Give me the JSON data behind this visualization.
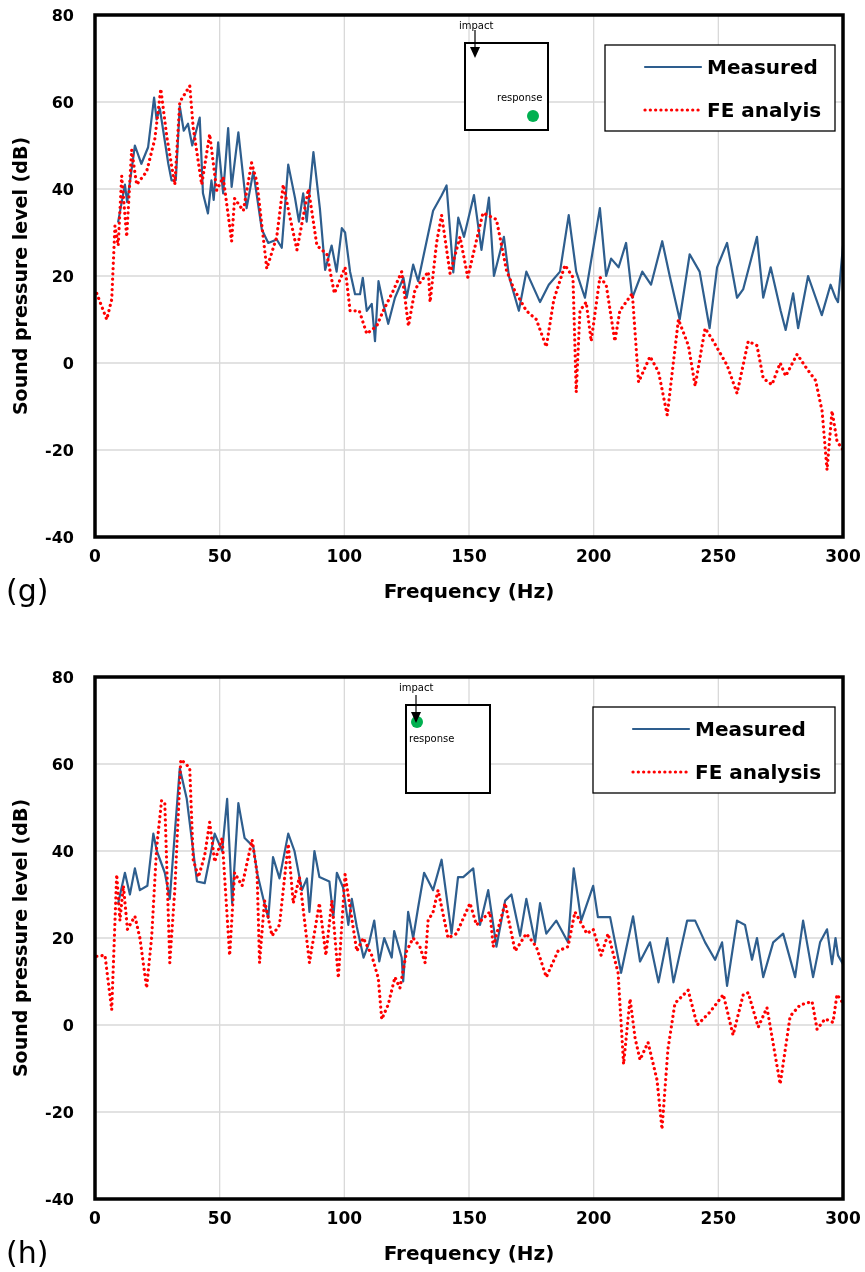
{
  "chart_data": [
    {
      "type": "line",
      "xlabel": "Frequency (Hz)",
      "ylabel": "Sound pressure level (dB)",
      "xlim": [
        0,
        300
      ],
      "ylim": [
        -40,
        80
      ],
      "xticks": [
        0,
        50,
        100,
        150,
        200,
        250,
        300
      ],
      "yticks": [
        -40,
        -20,
        0,
        20,
        40,
        60,
        80
      ],
      "grid": true,
      "legend": "top right",
      "annotations": [
        "(g)",
        "impact",
        "response"
      ],
      "series": [
        {
          "name": "Measured",
          "color": "#2e5e8e",
          "line_style": "solid",
          "x": [
            9.3,
            12,
            12.9,
            16,
            18.6,
            21.3,
            23.7,
            24.7,
            26,
            29.4,
            30.7,
            32.4,
            34,
            35.6,
            37.3,
            39,
            42,
            43.3,
            45.3,
            46.7,
            47.6,
            49.4,
            51.4,
            53.4,
            54.8,
            57.5,
            60.8,
            63.5,
            66.9,
            69.5,
            72.9,
            74.9,
            77.5,
            80.2,
            81.8,
            83.5,
            84.9,
            87.6,
            90.2,
            92.3,
            94.9,
            96.9,
            99,
            100.3,
            102.3,
            104.3,
            106.3,
            107.4,
            109,
            111,
            112.3,
            113.7,
            115.6,
            117.6,
            120.3,
            123.7,
            125,
            127.6,
            129.6,
            133,
            135.6,
            139,
            141,
            143.7,
            145.7,
            148,
            152,
            155,
            158,
            160,
            164,
            166,
            170,
            173,
            178.5,
            182,
            186.5,
            190,
            193,
            196.5,
            202.5,
            205,
            207,
            210,
            213,
            215.5,
            219.5,
            223,
            227.5,
            230.5,
            234.5,
            238.5,
            242.5,
            246.5,
            249.5,
            253.5,
            257.5,
            260,
            265.5,
            268,
            271,
            275,
            277,
            280,
            282,
            286,
            291.5,
            295,
            297,
            298,
            300
          ],
          "values": [
            32.5,
            41,
            37,
            50,
            45.8,
            49.6,
            61,
            56,
            58.5,
            45.8,
            42,
            42,
            59,
            53.4,
            55,
            50,
            56.4,
            39,
            34.4,
            42,
            37.5,
            50.7,
            39,
            54,
            40.5,
            53,
            35.6,
            44,
            30.7,
            27.6,
            28.4,
            26.5,
            45.6,
            38,
            32.5,
            39,
            32.5,
            48.5,
            35.5,
            21.4,
            27,
            21,
            31,
            30,
            21,
            15.8,
            15.8,
            19.6,
            12,
            13.6,
            5,
            18.8,
            13.6,
            9,
            15,
            19.6,
            15,
            22.6,
            18.8,
            28,
            35,
            38.5,
            40.8,
            20.8,
            33.4,
            29,
            38.6,
            26,
            38,
            20,
            29,
            20,
            12,
            21,
            14,
            18,
            21,
            34,
            21,
            15,
            35.6,
            20,
            24,
            22,
            27.6,
            15,
            21,
            18,
            28,
            20,
            10,
            25,
            21,
            8,
            22,
            27.6,
            15,
            17,
            29,
            15,
            22,
            12,
            7.6,
            16,
            8,
            20,
            11,
            18,
            15,
            14,
            27
          ]
        },
        {
          "name": "FE analyis",
          "color": "#ff0000",
          "line_style": "dotted",
          "x": [
            0.7,
            4.7,
            6.7,
            8,
            9.3,
            10.7,
            12.7,
            14.7,
            16.7,
            20.7,
            24,
            26.4,
            28.8,
            32,
            34,
            38,
            39.4,
            42.8,
            46,
            48.8,
            51.4,
            54.8,
            56,
            59.5,
            62.8,
            64.9,
            68.9,
            72.9,
            75.5,
            78,
            81,
            85.6,
            89,
            93,
            96,
            100.3,
            102.3,
            106,
            109,
            113,
            115.6,
            119.6,
            123,
            125.7,
            128.4,
            133.7,
            134.4,
            137,
            139,
            142.4,
            146.4,
            149.5,
            155.6,
            161,
            165,
            168,
            173,
            177,
            181,
            184,
            188.5,
            191.7,
            193,
            194.5,
            197,
            199,
            202.5,
            205,
            208.5,
            210.5,
            215.5,
            218,
            222.6,
            226,
            229.5,
            234,
            238,
            240.7,
            244.7,
            248,
            253.5,
            257.5,
            262,
            265.5,
            268,
            271.5,
            274.8,
            277,
            281.6,
            285.6,
            289,
            291.6,
            293.6,
            295.6,
            297.6,
            300
          ],
          "values": [
            16,
            10,
            14.6,
            31.5,
            27,
            43,
            29,
            49,
            41,
            44,
            51.5,
            63,
            52,
            41,
            60,
            63.7,
            54,
            41,
            52.6,
            39.7,
            42.7,
            28,
            37.8,
            35,
            46,
            41.7,
            21.7,
            29,
            41,
            34,
            26,
            40,
            27,
            25,
            16,
            22,
            12,
            12,
            6.7,
            8.5,
            12,
            16.6,
            21,
            8.5,
            17,
            21,
            14,
            27.6,
            34,
            20.6,
            29,
            19.7,
            34.5,
            33,
            21.4,
            17,
            12,
            10,
            3.7,
            14.5,
            22.5,
            19.7,
            -6.7,
            12,
            14,
            5,
            19.7,
            18,
            5,
            12,
            16,
            -4.4,
            1.5,
            -2,
            -12,
            10,
            4,
            -5.3,
            8,
            5,
            -0.5,
            -7,
            5,
            4,
            -3.5,
            -5,
            0,
            -3,
            2,
            -1.4,
            -4,
            -11,
            -24.6,
            -11,
            -18,
            -20
          ]
        }
      ]
    },
    {
      "type": "line",
      "xlabel": "Frequency (Hz)",
      "ylabel": "Sound pressure level (dB)",
      "xlim": [
        0,
        300
      ],
      "ylim": [
        -40,
        80
      ],
      "xticks": [
        0,
        50,
        100,
        150,
        200,
        250,
        300
      ],
      "yticks": [
        -40,
        -20,
        0,
        20,
        40,
        60,
        80
      ],
      "grid": true,
      "legend": "top right",
      "annotations": [
        "(h)",
        "impact",
        "response"
      ],
      "series": [
        {
          "name": "Measured",
          "color": "#2e5e8e",
          "line_style": "solid",
          "x": [
            9.3,
            12,
            14,
            16,
            18,
            21,
            23.4,
            24.8,
            28,
            30,
            34,
            36.8,
            40.9,
            44,
            48,
            51,
            53,
            55,
            57.5,
            60,
            63.5,
            65,
            67.5,
            69.5,
            71.4,
            74,
            77.5,
            80,
            83,
            85,
            86,
            88,
            90,
            94,
            95.6,
            97,
            99.5,
            101.6,
            103,
            105,
            107.7,
            110,
            112,
            114,
            116,
            119,
            120,
            123,
            123.6,
            125.6,
            127.6,
            129.6,
            132,
            135.6,
            139,
            143,
            145.6,
            147.7,
            151.7,
            154.4,
            157.7,
            161,
            164.5,
            167,
            170.5,
            173,
            176.5,
            178.5,
            181,
            185,
            189.7,
            192,
            195,
            199.8,
            201.7,
            206.6,
            211,
            215.8,
            218.6,
            222.6,
            226,
            229.5,
            232,
            237.5,
            240.7,
            244.7,
            248.7,
            251.5,
            253.5,
            257.5,
            260.7,
            263.5,
            265.5,
            268,
            272,
            276,
            280.8,
            284,
            288,
            290.8,
            293.6,
            295.6,
            297,
            298,
            300
          ],
          "values": [
            28,
            35,
            30,
            36,
            31,
            32,
            44,
            40,
            35,
            29,
            59,
            52,
            33,
            32.6,
            44,
            40,
            52,
            28,
            51,
            43,
            41,
            35,
            29,
            24.6,
            38.6,
            33.7,
            44,
            40,
            31,
            33.7,
            26,
            40,
            34,
            33,
            24.8,
            35,
            31.6,
            23,
            29,
            22.6,
            15.5,
            19,
            24,
            14.6,
            20,
            15.5,
            21.6,
            15.5,
            10,
            26,
            20,
            27,
            35,
            31,
            38,
            21,
            34,
            34,
            36,
            23,
            31,
            18,
            28.6,
            30,
            20.5,
            29,
            19,
            28,
            21,
            24,
            19,
            36,
            24,
            32,
            24.8,
            24.8,
            12,
            25,
            14.6,
            19,
            9.8,
            20,
            9.8,
            24,
            24,
            19,
            15,
            19,
            9,
            24,
            23,
            15,
            20,
            11,
            19,
            21,
            11,
            24,
            11,
            19,
            22,
            14,
            20,
            16,
            14
          ]
        },
        {
          "name": "FE analysis",
          "color": "#ff0000",
          "line_style": "dotted",
          "x": [
            0.7,
            4,
            6.7,
            8.7,
            10,
            11.4,
            13,
            16,
            18,
            20.7,
            22.7,
            24.7,
            26.7,
            28,
            30,
            32,
            34.4,
            36.5,
            38,
            39.4,
            41.5,
            44,
            46,
            48,
            51,
            54,
            56,
            59,
            63,
            65,
            66,
            68,
            71,
            74,
            77.5,
            79.5,
            82,
            86,
            90,
            92.6,
            95,
            97.6,
            100.3,
            102.3,
            105,
            107.6,
            111,
            113.6,
            115,
            117.6,
            120.3,
            122.3,
            125,
            127.6,
            130.3,
            132.4,
            133.6,
            135.6,
            137.6,
            141.6,
            145,
            150.4,
            153,
            158.4,
            159.7,
            164.5,
            168.5,
            173,
            177,
            181,
            185.7,
            189.7,
            192.5,
            197.3,
            199.8,
            203,
            205.8,
            209.8,
            212,
            214.6,
            216.6,
            218.6,
            221.8,
            225.4,
            227.4,
            229.8,
            232.6,
            237.9,
            241.5,
            246.7,
            252,
            255.9,
            260,
            262,
            266,
            269.5,
            274.8,
            278.8,
            282.8,
            287.6,
            289.6,
            292.8,
            296,
            297.6,
            300
          ],
          "values": [
            15.8,
            16,
            3.5,
            34.6,
            24,
            32,
            22,
            25,
            20,
            8.5,
            20,
            40.6,
            51.6,
            51,
            14.3,
            31,
            61,
            60,
            59,
            38,
            34,
            39,
            46.6,
            37.5,
            43,
            16,
            35,
            32,
            42.6,
            35,
            14.3,
            28.6,
            20.5,
            23,
            41.6,
            28,
            34,
            14.3,
            28,
            16,
            28.6,
            10.8,
            34.6,
            27,
            17,
            20,
            16,
            10.8,
            1.3,
            4.7,
            11,
            8.5,
            17,
            20,
            18,
            14.3,
            24,
            26,
            31,
            20,
            21,
            28,
            23,
            26,
            18,
            28,
            17,
            21,
            18,
            11,
            17,
            18,
            26,
            21,
            22,
            16,
            21,
            12,
            -9,
            6,
            -3,
            -8,
            -4,
            -12.6,
            -24,
            -5.5,
            5,
            8,
            0,
            3,
            7,
            -2.3,
            7,
            7.4,
            -0.5,
            4,
            -13.6,
            2,
            4.6,
            5.4,
            -1,
            1.4,
            0.6,
            7,
            5
          ]
        }
      ]
    }
  ]
}
